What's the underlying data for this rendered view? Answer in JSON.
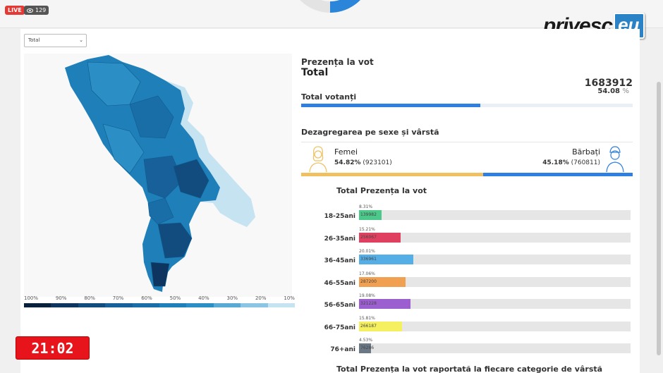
{
  "stream": {
    "live_label": "LIVE",
    "viewers": "129"
  },
  "logo": {
    "text": "privesc",
    "suffix": "eu"
  },
  "filter": {
    "selected": "Total"
  },
  "map": {
    "scale_labels": [
      "100%",
      "90%",
      "80%",
      "70%",
      "60%",
      "50%",
      "40%",
      "30%",
      "20%",
      "10%"
    ],
    "scale_colors": [
      "#08203a",
      "#0d3560",
      "#124b7e",
      "#17609a",
      "#1a6ea8",
      "#1f7fb8",
      "#2b8fc6",
      "#5aa9d4",
      "#8cc4e3",
      "#c6e3f2"
    ]
  },
  "turnout": {
    "heading": "Prezența la vot",
    "scope": "Total",
    "total_value": "1683912",
    "total_percent": "54.08",
    "percent_unit": "%",
    "total_label": "Total votanți",
    "fill_fraction": 0.5408
  },
  "gender": {
    "heading": "Dezagregarea pe sexe și vârstă",
    "female": {
      "label": "Femei",
      "percent": "54.82%",
      "count": "(923101)",
      "fraction": 0.5482
    },
    "male": {
      "label": "Bărbați",
      "percent": "45.18%",
      "count": "(760811)",
      "fraction": 0.4518
    },
    "female_color": "#f0c060",
    "male_color": "#2f7fe0"
  },
  "age": {
    "heading": "Total  Prezența la vot",
    "groups": [
      {
        "label": "18-25ani",
        "percent": "8.31%",
        "count": "139982",
        "fraction": 0.0831,
        "color": "#4cc98a"
      },
      {
        "label": "26-35ani",
        "percent": "15.21%",
        "count": "256067",
        "fraction": 0.1521,
        "color": "#e0405f"
      },
      {
        "label": "36-45ani",
        "percent": "20.01%",
        "count": "336961",
        "fraction": 0.2001,
        "color": "#56aee6"
      },
      {
        "label": "46-55ani",
        "percent": "17.06%",
        "count": "287200",
        "fraction": 0.1706,
        "color": "#f0a050"
      },
      {
        "label": "56-65ani",
        "percent": "19.08%",
        "count": "321228",
        "fraction": 0.1908,
        "color": "#9b5fd0"
      },
      {
        "label": "66-75ani",
        "percent": "15.81%",
        "count": "266187",
        "fraction": 0.1581,
        "color": "#f5f060"
      },
      {
        "label": "76+ani",
        "percent": "4.53%",
        "count": "76286",
        "fraction": 0.0453,
        "color": "#6a7885"
      }
    ]
  },
  "bottom_heading": "Total  Prezența la vot raportată la fiecare categorie de vârstă",
  "clock": "21:02"
}
